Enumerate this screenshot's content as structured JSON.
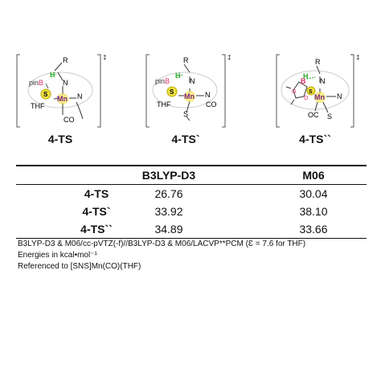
{
  "structures": [
    {
      "label": "4-TS",
      "atoms": {
        "R": "R",
        "H": "H",
        "N1": "N",
        "pin": "pinB",
        "S1": "S",
        "Mn": "Mn",
        "N2": "N",
        "THF": "THF",
        "CO": "CO",
        "dagger": "‡"
      }
    },
    {
      "label": "4-TS`",
      "atoms": {
        "R": "R",
        "H": "H",
        "N1": "N",
        "pin": "pinB",
        "S1": "S",
        "Mn": "Mn",
        "N2": "N",
        "THF": "THF",
        "CO": "CO",
        "S2": "S",
        "dagger": "‡"
      }
    },
    {
      "label": "4-TS``",
      "atoms": {
        "R": "R",
        "H": "H",
        "N1": "N",
        "B": "B",
        "O1": "O",
        "O2": "O",
        "S1": "S",
        "Mn": "Mn",
        "N2": "N",
        "OC": "OC",
        "S2": "S",
        "dagger": "‡"
      }
    }
  ],
  "table": {
    "headers": [
      "",
      "B3LYP-D3",
      "M06"
    ],
    "rows": [
      [
        "4-TS",
        "26.76",
        "30.04"
      ],
      [
        "4-TS`",
        "33.92",
        "38.10"
      ],
      [
        "4-TS``",
        "34.89",
        "33.66"
      ]
    ]
  },
  "notes": [
    "B3LYP-D3 & M06/cc-pVTZ(-f)//B3LYP-D3 & M06/LACVP**PCM (Ɛ = 7.6 for THF)",
    "Energies in kcal•mol⁻¹",
    "Referenced to [SNS]Mn(CO)(THF)"
  ],
  "colors": {
    "boron": "#e0306a",
    "hydrogen": "#2eaa2e",
    "sulfur": "#b8a800",
    "manganese": "#7a1f7a"
  }
}
